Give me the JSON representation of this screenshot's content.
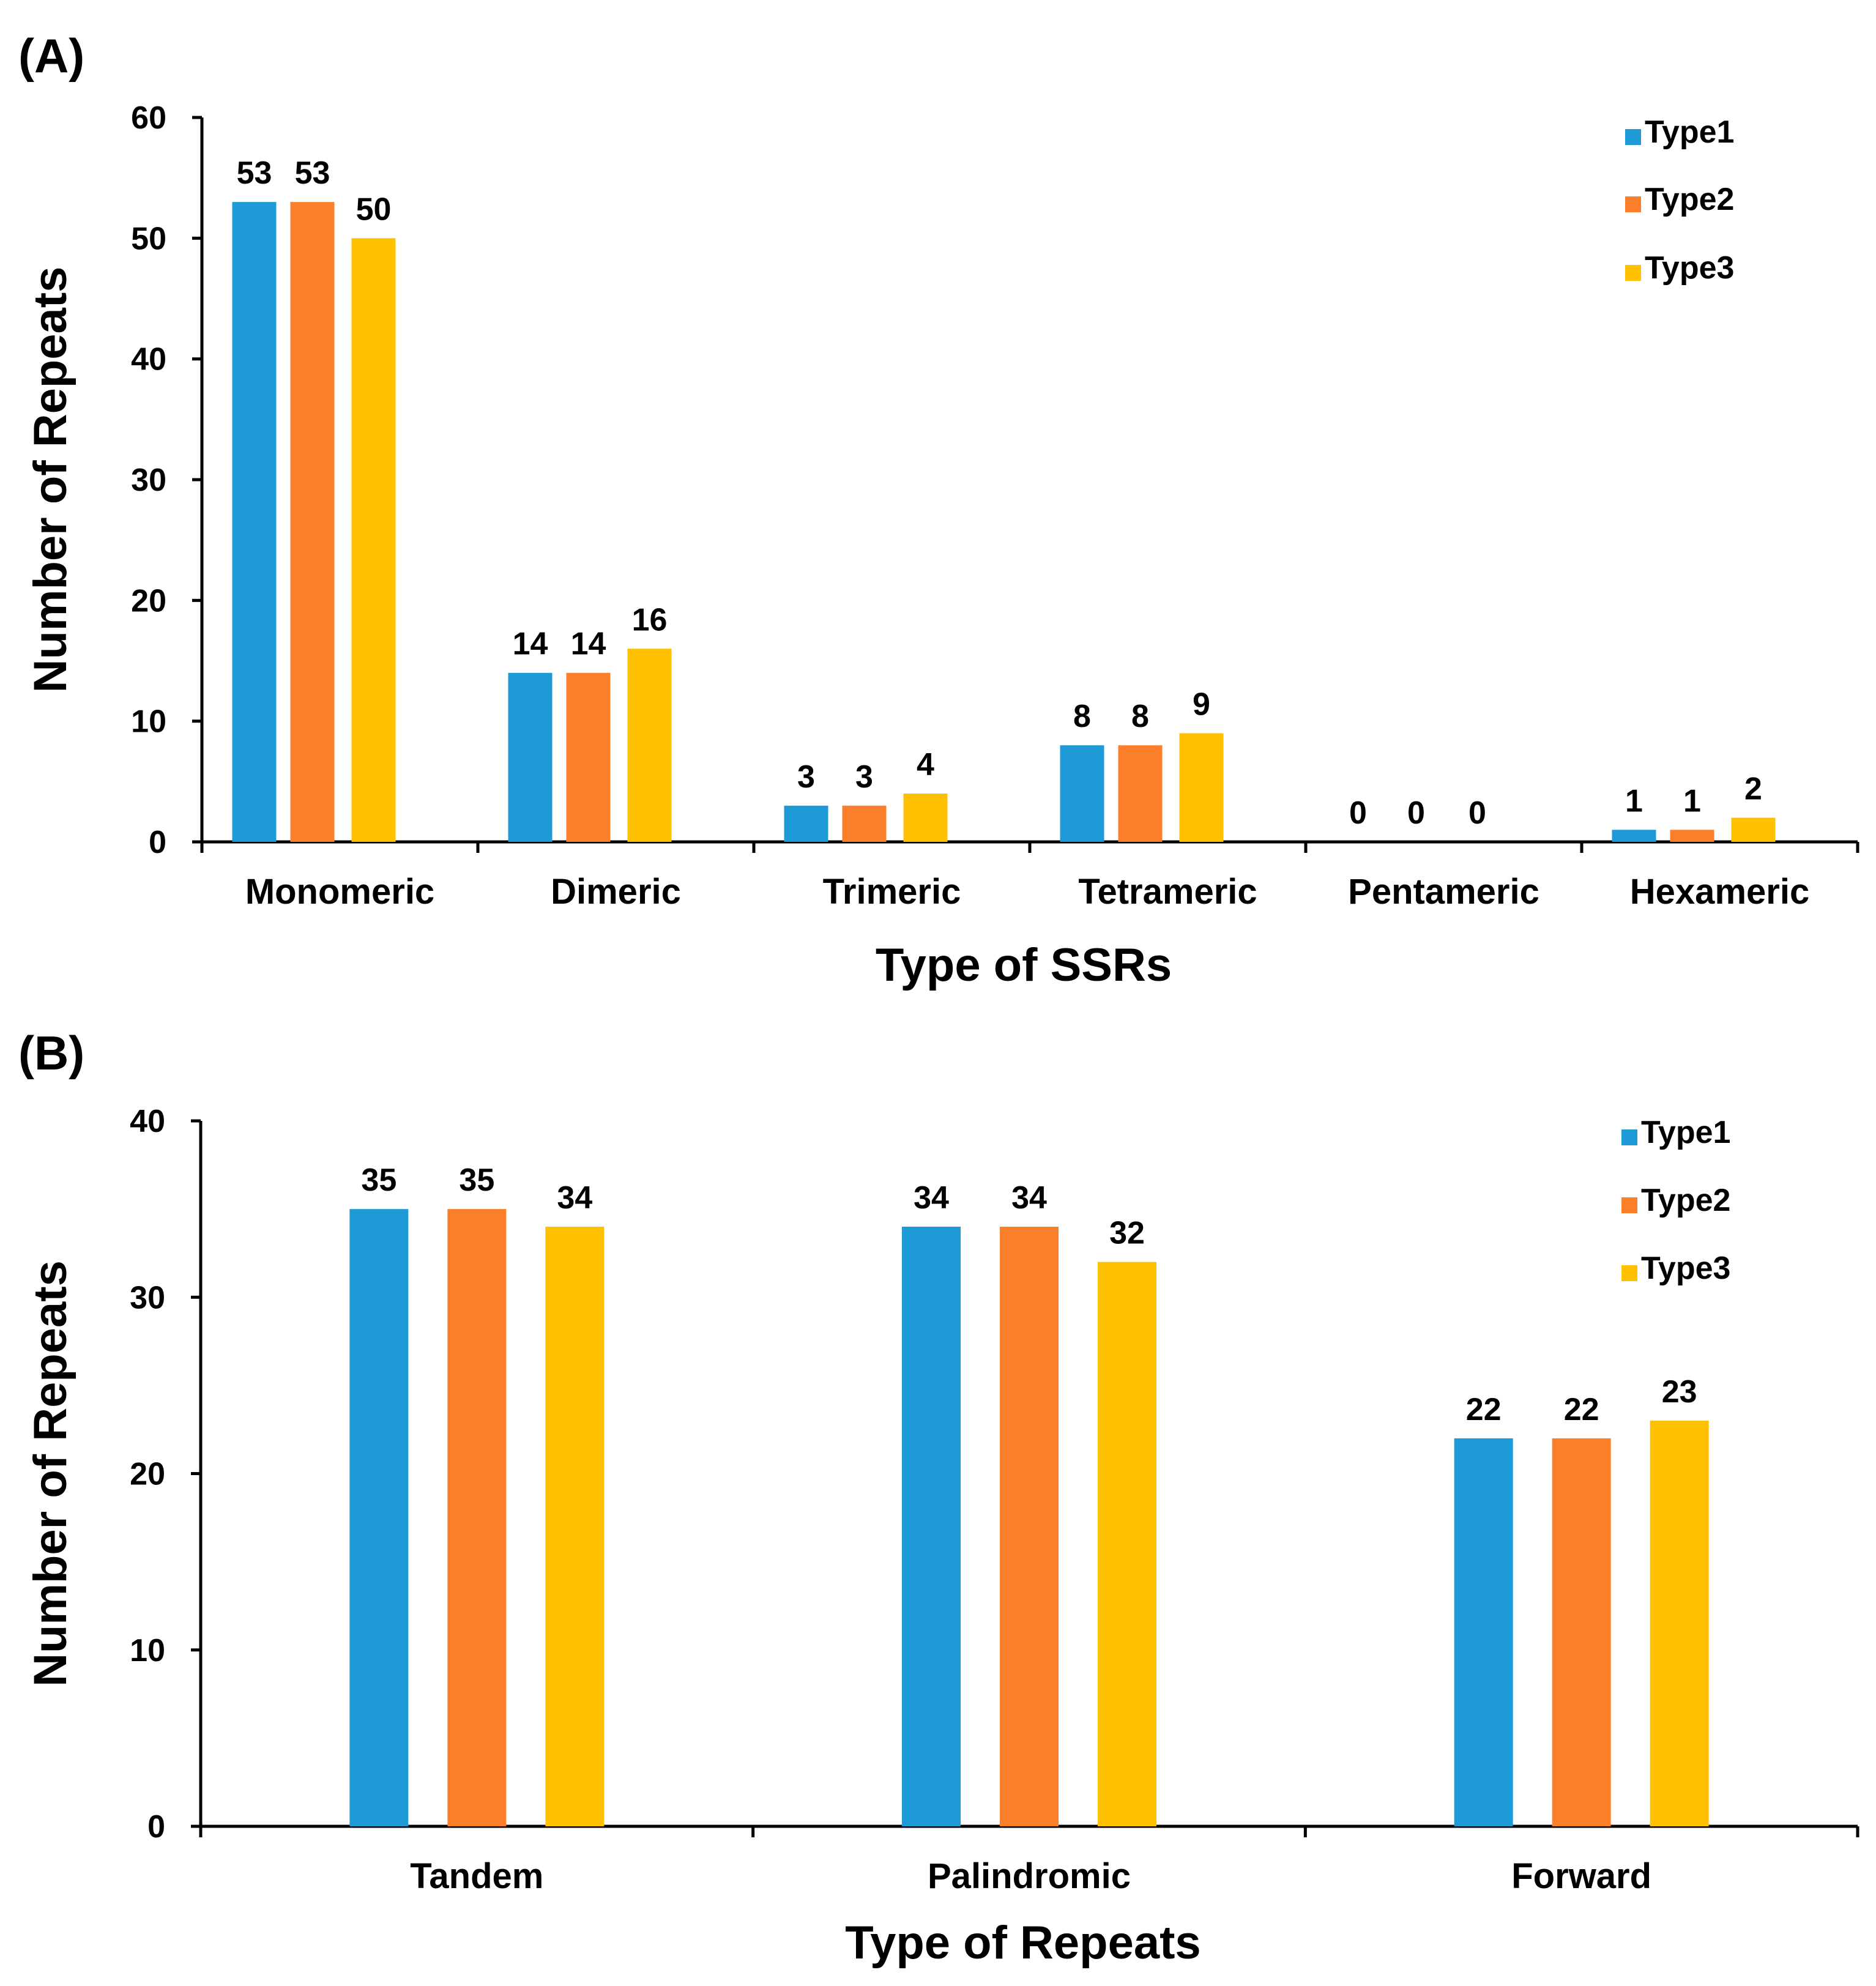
{
  "colors": {
    "Type1": "#1e9bd7",
    "Type2": "#fb7f2a",
    "Type3": "#ffc000"
  },
  "chart_data": [
    {
      "panel": "(A)",
      "type": "bar",
      "title": "",
      "xlabel": "Type of SSRs",
      "ylabel": "Number of Repeats",
      "ylim": [
        0,
        60
      ],
      "yticks": [
        0,
        10,
        20,
        30,
        40,
        50,
        60
      ],
      "legend_position": "top-right",
      "categories": [
        "Monomeric",
        "Dimeric",
        "Trimeric",
        "Tetrameric",
        "Pentameric",
        "Hexameric"
      ],
      "series": [
        {
          "name": "Type1",
          "values": [
            53,
            14,
            3,
            8,
            0,
            1
          ]
        },
        {
          "name": "Type2",
          "values": [
            53,
            14,
            3,
            8,
            0,
            1
          ]
        },
        {
          "name": "Type3",
          "values": [
            50,
            16,
            4,
            9,
            0,
            2
          ]
        }
      ]
    },
    {
      "panel": "(B)",
      "type": "bar",
      "title": "",
      "xlabel": "Type of Repeats",
      "ylabel": "Number of Repeats",
      "ylim": [
        0,
        40
      ],
      "yticks": [
        0,
        10,
        20,
        30,
        40
      ],
      "legend_position": "top-right",
      "categories": [
        "Tandem",
        "Palindromic",
        "Forward"
      ],
      "series": [
        {
          "name": "Type1",
          "values": [
            35,
            34,
            22
          ]
        },
        {
          "name": "Type2",
          "values": [
            35,
            34,
            22
          ]
        },
        {
          "name": "Type3",
          "values": [
            34,
            32,
            23
          ]
        }
      ]
    }
  ]
}
